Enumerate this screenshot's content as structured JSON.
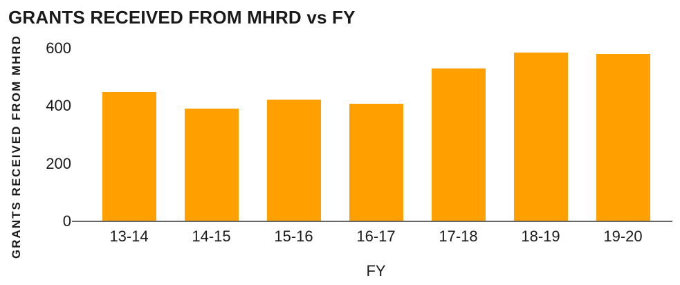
{
  "chart_data": {
    "type": "bar",
    "title": "GRANTS RECEIVED FROM MHRD vs FY",
    "categories": [
      "13-14",
      "14-15",
      "15-16",
      "16-17",
      "17-18",
      "18-19",
      "19-20"
    ],
    "values": [
      448,
      392,
      422,
      409,
      530,
      585,
      580
    ],
    "xlabel": "FY",
    "ylabel": "GRANTS RECEIVED FROM MHRD",
    "ylim": [
      0,
      600
    ],
    "yticks": [
      0,
      200,
      400,
      600
    ],
    "grid": false,
    "legend": "none",
    "colors": {
      "bar": "#FFA000",
      "axis_line": "#666666",
      "text": "#1A1A1A",
      "background": "#FFFFFF"
    }
  }
}
